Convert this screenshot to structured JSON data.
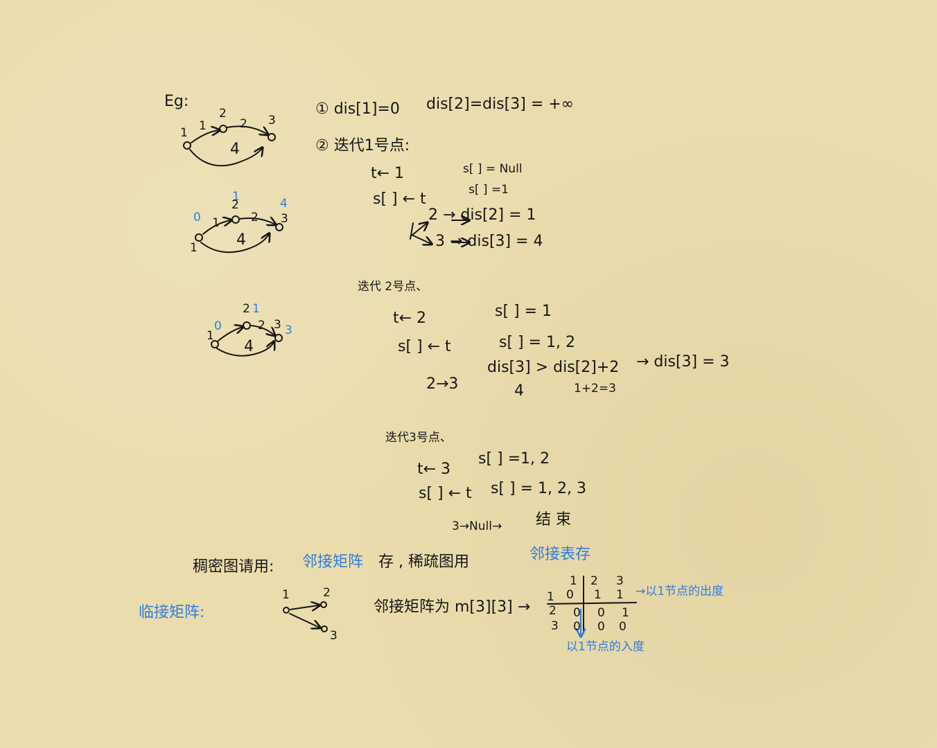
{
  "graph_labels": {
    "eg": "Eg:",
    "n1": "1",
    "n2": "2",
    "n3": "3",
    "w12": "1",
    "w23": "2",
    "w13": "4",
    "d0": "0",
    "d1": "1",
    "d4": "4",
    "d3": "3"
  },
  "steps": {
    "s1": "① dis[1]=0",
    "s1b": "dis[2]=dis[3] = +∞",
    "s2": "② 迭代1号点:",
    "i1_a": "t← 1",
    "i1_b": "s[ ] = Null",
    "i1_c": "s[ ] ← t",
    "i1_d": "s[ ] =1",
    "i1_e": "2 → dis[2] = 1",
    "i1_f": "3 → dis[3] = 4",
    "i2_h": "迭代 2号点、",
    "i2_a": "t← 2",
    "i2_b": "s[ ] = 1",
    "i2_c": "s[ ] ← t",
    "i2_d": "s[ ] = 1, 2",
    "i2_e": "2→3",
    "i2_f": "dis[3] > dis[2]+2",
    "i2_g": "4",
    "i2_h2": "1+2=3",
    "i2_i": "→ dis[3] = 3",
    "i3_h": "迭代3号点、",
    "i3_a": "t← 3",
    "i3_b": "s[ ] =1, 2",
    "i3_c": "s[ ] ← t",
    "i3_d": "s[ ] = 1, 2, 3",
    "i3_e": "3→Null→",
    "i3_f": "结 束"
  },
  "bottom": {
    "dense_a": "稠密图请用:",
    "dense_b": "邻接矩阵",
    "dense_c": "存 , 稀疏图用",
    "dense_d": "邻接表存",
    "adj": "临接矩阵:",
    "adj_desc": "邻接矩阵为 m[3][3] →",
    "out_note": "→以1节点的出度",
    "in_note": "以1节点的入度",
    "matrix": {
      "cols": [
        "1",
        "2",
        "3"
      ],
      "rows": [
        "1",
        "2",
        "3"
      ],
      "cells": [
        [
          "0",
          "1",
          "1"
        ],
        [
          "0",
          "0",
          "1"
        ],
        [
          "0",
          "0",
          "0"
        ]
      ]
    }
  }
}
